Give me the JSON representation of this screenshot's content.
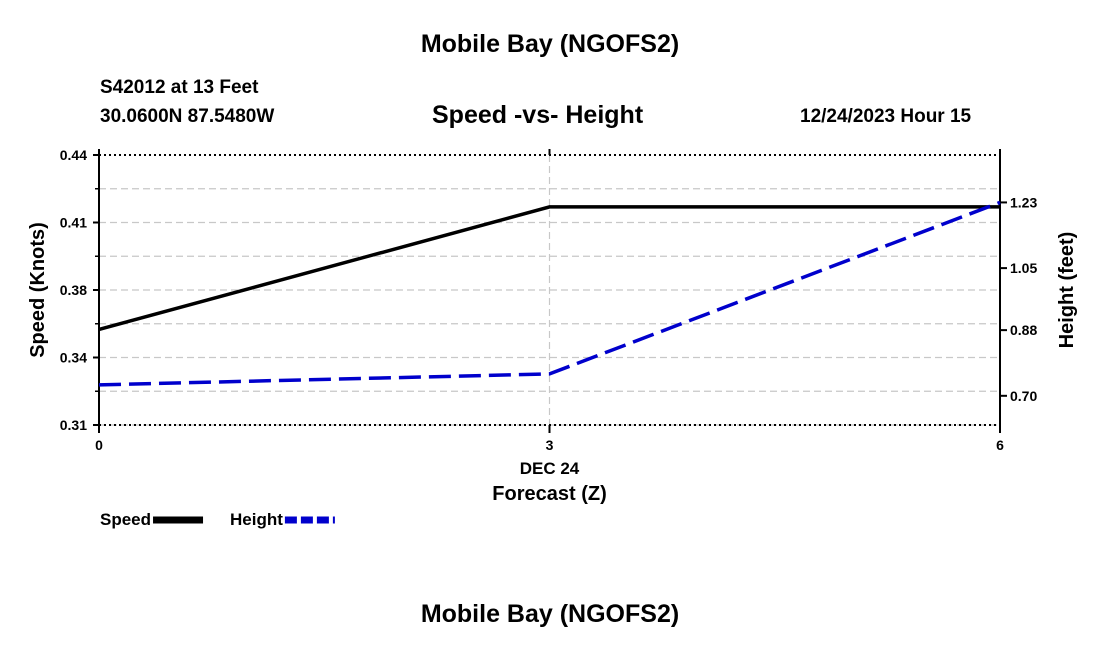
{
  "header": {
    "title": "Mobile Bay (NGOFS2)",
    "station": "S42012 at 13 Feet",
    "coords": "30.0600N  87.5480W",
    "subtitle": "Speed -vs- Height",
    "datetime": "12/24/2023 Hour 15"
  },
  "footer": {
    "title": "Mobile Bay (NGOFS2)"
  },
  "chart_data": {
    "type": "line",
    "title": "Speed -vs- Height",
    "xlabel": "Forecast (Z)",
    "xlabel_date": "DEC 24",
    "ylabel": "Speed (Knots)",
    "y2label": "Height (feet)",
    "x_ticks": [
      0,
      3,
      6
    ],
    "xlim": [
      0,
      6
    ],
    "ylim": [
      0.31,
      0.44
    ],
    "y_ticks": [
      "0.31",
      "0.34",
      "0.38",
      "0.41",
      "0.44"
    ],
    "y2lim": [
      0.62,
      1.36
    ],
    "y2_ticks": [
      "0.70",
      "0.88",
      "1.05",
      "1.23"
    ],
    "grid": true,
    "legend": "bottom-left",
    "series": [
      {
        "name": "Speed",
        "axis": "left",
        "color": "#000000",
        "dash": "solid",
        "x": [
          0,
          3,
          6
        ],
        "values": [
          0.356,
          0.415,
          0.415
        ]
      },
      {
        "name": "Height",
        "axis": "right",
        "color": "#0000cc",
        "dash": "dashed",
        "x": [
          0,
          3,
          6
        ],
        "values": [
          0.73,
          0.76,
          1.23
        ]
      }
    ]
  }
}
